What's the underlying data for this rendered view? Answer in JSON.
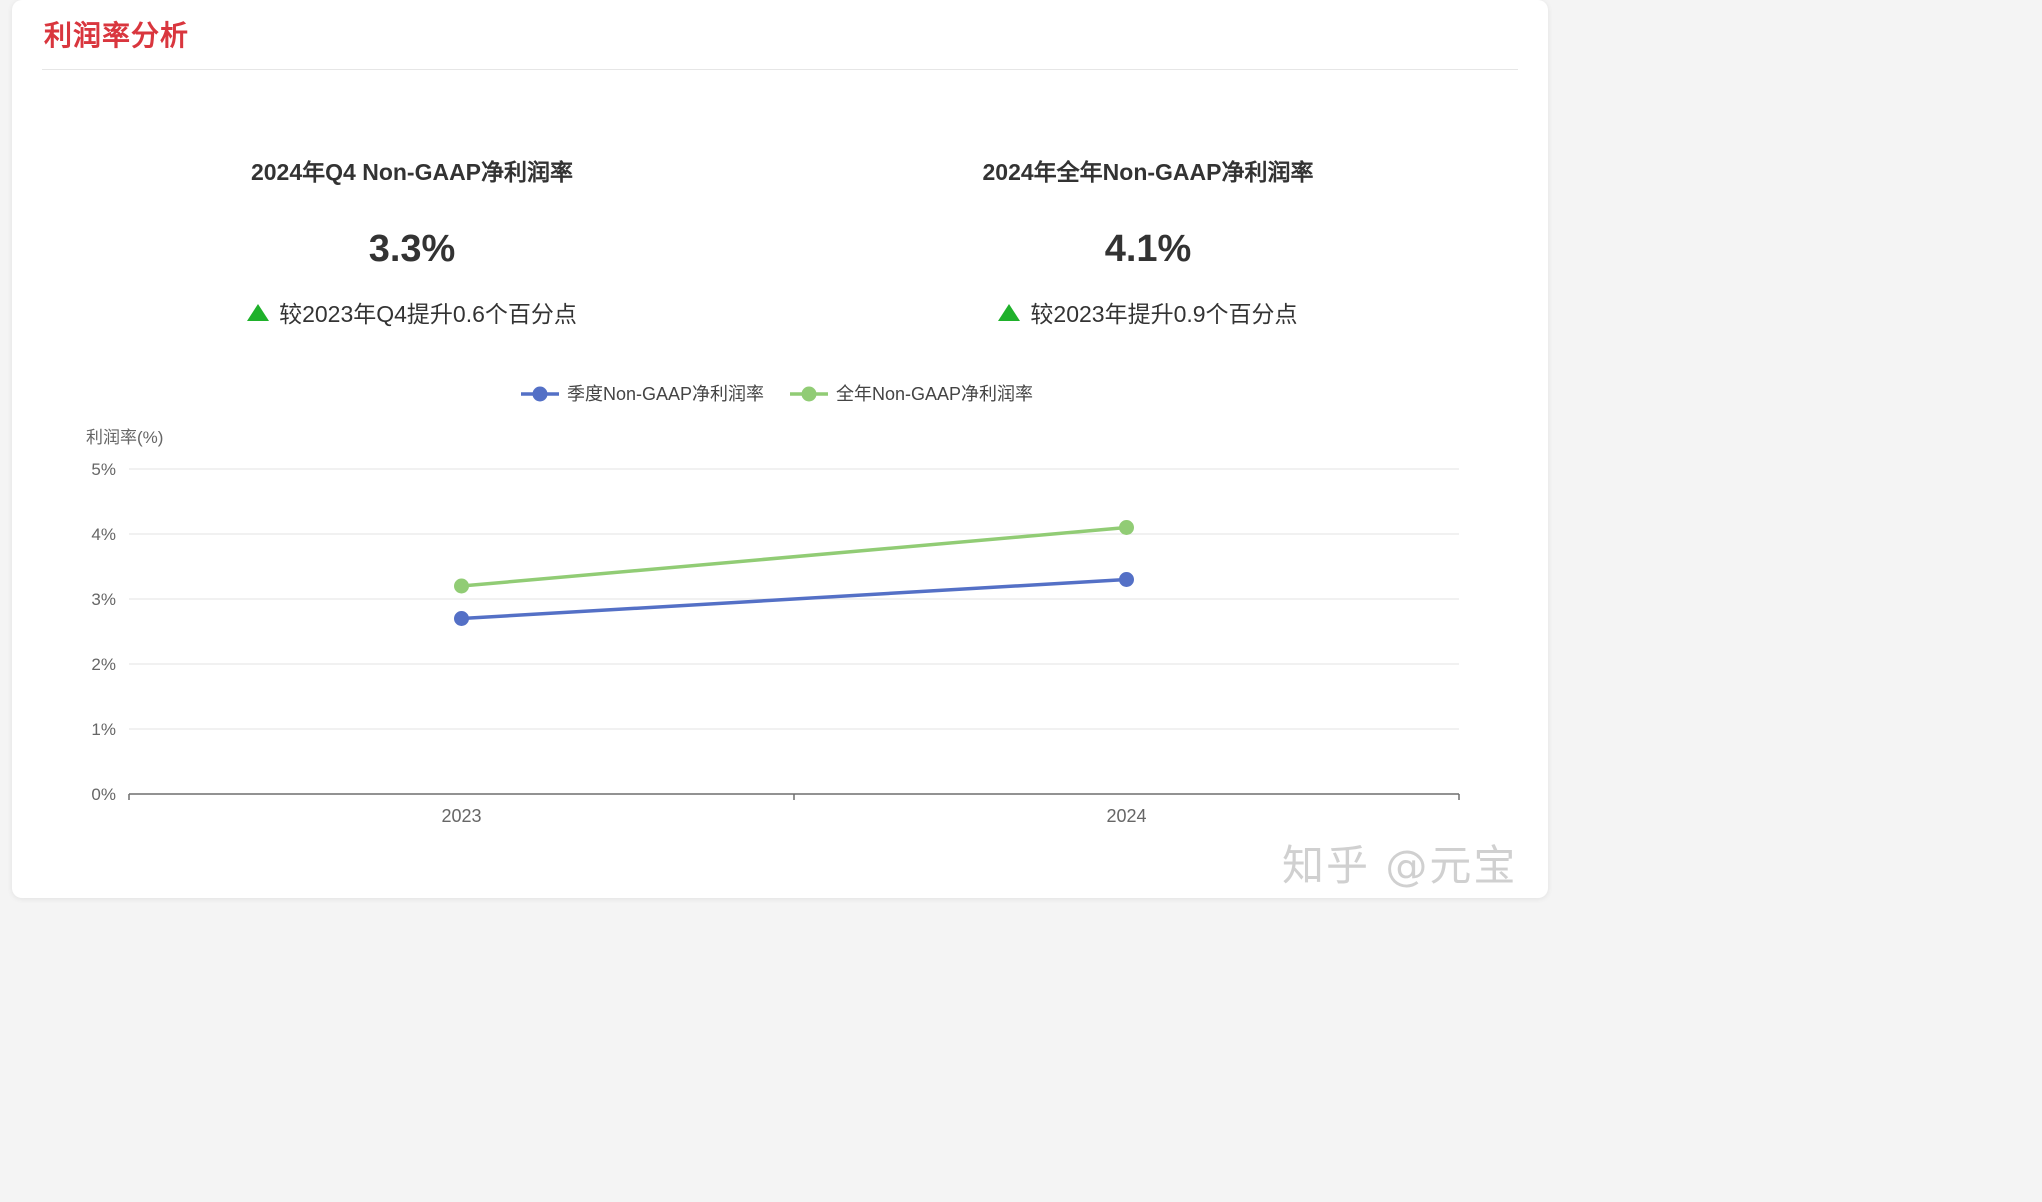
{
  "section": {
    "title": "利润率分析"
  },
  "stats": [
    {
      "label": "2024年Q4 Non-GAAP净利润率",
      "value": "3.3%",
      "change": "较2023年Q4提升0.6个百分点"
    },
    {
      "label": "2024年全年Non-GAAP净利润率",
      "value": "4.1%",
      "change": "较2023年提升0.9个百分点"
    }
  ],
  "colors": {
    "title": "#d9363e",
    "up": "#1fb12b",
    "series1": "#5470c6",
    "series2": "#91cc75"
  },
  "chart_data": {
    "type": "line",
    "x": [
      "2023",
      "2024"
    ],
    "series": [
      {
        "name": "季度Non-GAAP净利润率",
        "values": [
          2.7,
          3.3
        ],
        "color": "#5470c6"
      },
      {
        "name": "全年Non-GAAP净利润率",
        "values": [
          3.2,
          4.1
        ],
        "color": "#91cc75"
      }
    ],
    "ylabel": "利润率(%)",
    "ylim": [
      0,
      5
    ],
    "yticks": [
      "0%",
      "1%",
      "2%",
      "3%",
      "4%",
      "5%"
    ],
    "grid": true,
    "legend": "top-center"
  },
  "watermark": "知乎 @元宝"
}
